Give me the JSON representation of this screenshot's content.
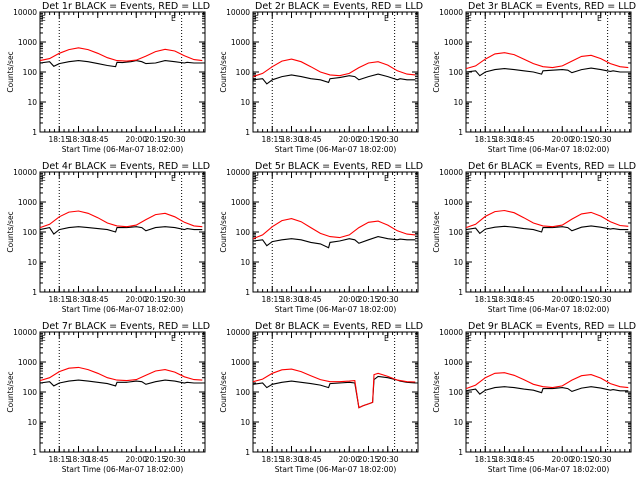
{
  "figure": {
    "y_axis_label": "Counts/sec",
    "x_axis_label": "Start Time (06-Mar-07 18:02:00)",
    "x_tick_labels": [
      "18:15",
      "18:30",
      "18:45",
      "20:00",
      "20:15",
      "20:30"
    ],
    "y_tick_labels": [
      "1",
      "10",
      "100",
      "1000",
      "10000"
    ],
    "corner_mark": "E",
    "colors": {
      "events": "#000000",
      "lld": "#ff0000",
      "axis": "#000000"
    }
  },
  "chart_data": [
    {
      "type": "line",
      "title": "Det 1r BLACK = Events, RED = LLD",
      "xlabel": "Start Time (06-Mar-07 18:02:00)",
      "ylabel": "Counts/sec",
      "yscale": "log",
      "ylim": [
        1,
        10000
      ],
      "x_ticks": [
        "18:15",
        "18:30",
        "18:45",
        "20:00",
        "20:15",
        "20:30"
      ],
      "vlines_minutes": [
        14,
        103
      ],
      "series": [
        {
          "name": "Events",
          "color": "black",
          "minutes": [
            0,
            7,
            10,
            14,
            21,
            28,
            35,
            42,
            49,
            55,
            56,
            60,
            66,
            70,
            74,
            77,
            84,
            91,
            98,
            105,
            107,
            112,
            118
          ],
          "values": [
            200,
            220,
            155,
            190,
            220,
            240,
            220,
            190,
            165,
            150,
            210,
            205,
            220,
            240,
            220,
            190,
            200,
            240,
            220,
            200,
            210,
            200,
            200
          ]
        },
        {
          "name": "LLD",
          "color": "red",
          "minutes": [
            0,
            7,
            14,
            21,
            28,
            35,
            42,
            49,
            56,
            63,
            70,
            77,
            84,
            91,
            98,
            105,
            112,
            118
          ],
          "values": [
            240,
            280,
            420,
            560,
            640,
            560,
            420,
            300,
            240,
            230,
            250,
            340,
            480,
            570,
            500,
            350,
            260,
            240
          ]
        }
      ]
    },
    {
      "type": "line",
      "title": "Det 2r BLACK = Events, RED = LLD",
      "xlabel": "Start Time (06-Mar-07 18:02:00)",
      "ylabel": "Counts/sec",
      "yscale": "log",
      "ylim": [
        1,
        10000
      ],
      "x_ticks": [
        "18:15",
        "18:30",
        "18:45",
        "20:00",
        "20:15",
        "20:30"
      ],
      "vlines_minutes": [
        14,
        103
      ],
      "series": [
        {
          "name": "Events",
          "color": "black",
          "minutes": [
            0,
            7,
            10,
            14,
            21,
            28,
            35,
            42,
            49,
            55,
            56,
            63,
            70,
            74,
            77,
            84,
            91,
            98,
            105,
            107,
            112,
            118
          ],
          "values": [
            55,
            60,
            40,
            55,
            70,
            80,
            70,
            60,
            55,
            45,
            60,
            65,
            75,
            70,
            55,
            70,
            85,
            70,
            55,
            60,
            55,
            55
          ]
        },
        {
          "name": "LLD",
          "color": "red",
          "minutes": [
            0,
            7,
            14,
            21,
            28,
            35,
            42,
            49,
            56,
            63,
            70,
            77,
            84,
            91,
            98,
            105,
            112,
            118
          ],
          "values": [
            70,
            90,
            150,
            230,
            270,
            220,
            150,
            100,
            80,
            75,
            90,
            140,
            200,
            220,
            170,
            110,
            85,
            80
          ]
        }
      ]
    },
    {
      "type": "line",
      "title": "Det 3r BLACK = Events, RED = LLD",
      "xlabel": "Start Time (06-Mar-07 18:02:00)",
      "ylabel": "Counts/sec",
      "yscale": "log",
      "ylim": [
        1,
        10000
      ],
      "x_ticks": [
        "18:15",
        "18:30",
        "18:45",
        "20:00",
        "20:15",
        "20:30"
      ],
      "vlines_minutes": [
        14,
        103
      ],
      "series": [
        {
          "name": "Events",
          "color": "black",
          "minutes": [
            0,
            7,
            10,
            14,
            21,
            28,
            35,
            42,
            49,
            55,
            56,
            63,
            70,
            74,
            77,
            84,
            91,
            98,
            105,
            107,
            112,
            118
          ],
          "values": [
            100,
            110,
            75,
            100,
            120,
            130,
            120,
            110,
            100,
            85,
            110,
            115,
            120,
            115,
            95,
            120,
            135,
            120,
            105,
            110,
            100,
            100
          ]
        },
        {
          "name": "LLD",
          "color": "red",
          "minutes": [
            0,
            7,
            14,
            21,
            28,
            35,
            42,
            49,
            56,
            63,
            70,
            77,
            84,
            91,
            98,
            105,
            112,
            118
          ],
          "values": [
            130,
            160,
            270,
            400,
            440,
            380,
            270,
            190,
            150,
            140,
            160,
            230,
            330,
            360,
            280,
            190,
            150,
            140
          ]
        }
      ]
    },
    {
      "type": "line",
      "title": "Det 4r BLACK = Events, RED = LLD",
      "xlabel": "Start Time (06-Mar-07 18:02:00)",
      "ylabel": "Counts/sec",
      "yscale": "log",
      "ylim": [
        1,
        10000
      ],
      "x_ticks": [
        "18:15",
        "18:30",
        "18:45",
        "20:00",
        "20:15",
        "20:30"
      ],
      "vlines_minutes": [
        14,
        103
      ],
      "series": [
        {
          "name": "Events",
          "color": "black",
          "minutes": [
            0,
            7,
            10,
            14,
            21,
            28,
            35,
            42,
            49,
            55,
            56,
            63,
            70,
            74,
            77,
            84,
            91,
            98,
            105,
            107,
            112,
            118
          ],
          "values": [
            120,
            140,
            85,
            120,
            140,
            150,
            140,
            130,
            120,
            100,
            140,
            140,
            150,
            140,
            110,
            140,
            150,
            140,
            120,
            130,
            120,
            120
          ]
        },
        {
          "name": "LLD",
          "color": "red",
          "minutes": [
            0,
            7,
            14,
            21,
            28,
            35,
            42,
            49,
            56,
            63,
            70,
            77,
            84,
            91,
            98,
            105,
            112,
            118
          ],
          "values": [
            140,
            180,
            320,
            460,
            500,
            420,
            300,
            200,
            160,
            150,
            170,
            260,
            380,
            420,
            320,
            210,
            160,
            150
          ]
        }
      ]
    },
    {
      "type": "line",
      "title": "Det 5r BLACK = Events, RED = LLD",
      "xlabel": "Start Time (06-Mar-07 18:02:00)",
      "ylabel": "Counts/sec",
      "yscale": "log",
      "ylim": [
        1,
        10000
      ],
      "x_ticks": [
        "18:15",
        "18:30",
        "18:45",
        "20:00",
        "20:15",
        "20:30"
      ],
      "vlines_minutes": [
        14,
        103
      ],
      "series": [
        {
          "name": "Events",
          "color": "black",
          "minutes": [
            0,
            7,
            10,
            14,
            21,
            28,
            35,
            42,
            49,
            55,
            56,
            63,
            70,
            74,
            77,
            84,
            91,
            98,
            105,
            107,
            112,
            118
          ],
          "values": [
            50,
            55,
            35,
            48,
            55,
            60,
            55,
            45,
            40,
            30,
            45,
            50,
            60,
            55,
            42,
            55,
            70,
            60,
            55,
            58,
            55,
            55
          ]
        },
        {
          "name": "LLD",
          "color": "red",
          "minutes": [
            0,
            7,
            14,
            21,
            28,
            35,
            42,
            49,
            56,
            63,
            70,
            77,
            84,
            91,
            98,
            105,
            112,
            118
          ],
          "values": [
            60,
            80,
            150,
            240,
            280,
            220,
            140,
            90,
            70,
            65,
            80,
            140,
            210,
            230,
            170,
            110,
            85,
            80
          ]
        }
      ]
    },
    {
      "type": "line",
      "title": "Det 6r BLACK = Events, RED = LLD",
      "xlabel": "Start Time (06-Mar-07 18:02:00)",
      "ylabel": "Counts/sec",
      "yscale": "log",
      "ylim": [
        1,
        10000
      ],
      "x_ticks": [
        "18:15",
        "18:30",
        "18:45",
        "20:00",
        "20:15",
        "20:30"
      ],
      "vlines_minutes": [
        14,
        103
      ],
      "series": [
        {
          "name": "Events",
          "color": "black",
          "minutes": [
            0,
            7,
            10,
            14,
            21,
            28,
            35,
            42,
            49,
            55,
            56,
            63,
            70,
            74,
            77,
            84,
            91,
            98,
            105,
            107,
            112,
            118
          ],
          "values": [
            120,
            135,
            90,
            125,
            145,
            155,
            145,
            130,
            120,
            100,
            140,
            140,
            150,
            140,
            110,
            145,
            160,
            145,
            125,
            130,
            120,
            120
          ]
        },
        {
          "name": "LLD",
          "color": "red",
          "minutes": [
            0,
            7,
            14,
            21,
            28,
            35,
            42,
            49,
            56,
            63,
            70,
            77,
            84,
            91,
            98,
            105,
            112,
            118
          ],
          "values": [
            140,
            180,
            330,
            480,
            520,
            440,
            300,
            200,
            160,
            150,
            170,
            270,
            400,
            450,
            340,
            220,
            165,
            155
          ]
        }
      ]
    },
    {
      "type": "line",
      "title": "Det 7r BLACK = Events, RED = LLD",
      "xlabel": "Start Time (06-Mar-07 18:02:00)",
      "ylabel": "Counts/sec",
      "yscale": "log",
      "ylim": [
        1,
        10000
      ],
      "x_ticks": [
        "18:15",
        "18:30",
        "18:45",
        "20:00",
        "20:15",
        "20:30"
      ],
      "vlines_minutes": [
        14,
        103
      ],
      "series": [
        {
          "name": "Events",
          "color": "black",
          "minutes": [
            0,
            7,
            10,
            14,
            21,
            28,
            35,
            42,
            49,
            55,
            56,
            63,
            70,
            74,
            77,
            84,
            91,
            98,
            105,
            107,
            112,
            118
          ],
          "values": [
            200,
            220,
            160,
            200,
            230,
            250,
            230,
            210,
            190,
            160,
            210,
            210,
            230,
            220,
            180,
            220,
            250,
            230,
            200,
            210,
            200,
            200
          ]
        },
        {
          "name": "LLD",
          "color": "red",
          "minutes": [
            0,
            7,
            14,
            21,
            28,
            35,
            42,
            49,
            56,
            63,
            70,
            77,
            84,
            91,
            98,
            105,
            112,
            118
          ],
          "values": [
            240,
            300,
            480,
            620,
            660,
            560,
            420,
            300,
            250,
            240,
            260,
            360,
            500,
            560,
            460,
            320,
            260,
            250
          ]
        }
      ]
    },
    {
      "type": "line",
      "title": "Det 8r BLACK = Events, RED = LLD",
      "xlabel": "Start Time (06-Mar-07 18:02:00)",
      "ylabel": "Counts/sec",
      "yscale": "log",
      "ylim": [
        1,
        10000
      ],
      "x_ticks": [
        "18:15",
        "18:30",
        "18:45",
        "20:00",
        "20:15",
        "20:30"
      ],
      "vlines_minutes": [
        14,
        103
      ],
      "series": [
        {
          "name": "Events",
          "color": "black",
          "minutes": [
            0,
            7,
            10,
            14,
            21,
            28,
            35,
            42,
            49,
            55,
            56,
            63,
            70,
            74,
            77,
            80,
            84,
            87,
            88,
            91,
            98,
            105,
            107,
            112,
            118
          ],
          "values": [
            180,
            200,
            140,
            180,
            210,
            230,
            210,
            190,
            170,
            140,
            190,
            200,
            210,
            200,
            30,
            35,
            40,
            45,
            260,
            330,
            300,
            250,
            230,
            210,
            200
          ]
        },
        {
          "name": "LLD",
          "color": "red",
          "minutes": [
            0,
            7,
            14,
            21,
            28,
            35,
            42,
            49,
            56,
            63,
            70,
            74,
            77,
            80,
            84,
            87,
            88,
            91,
            98,
            105,
            112,
            118
          ],
          "values": [
            220,
            270,
            420,
            550,
            580,
            480,
            350,
            260,
            220,
            220,
            230,
            240,
            30,
            35,
            40,
            45,
            380,
            420,
            330,
            250,
            220,
            215
          ]
        }
      ]
    },
    {
      "type": "line",
      "title": "Det 9r BLACK = Events, RED = LLD",
      "xlabel": "Start Time (06-Mar-07 18:02:00)",
      "ylabel": "Counts/sec",
      "yscale": "log",
      "ylim": [
        1,
        10000
      ],
      "x_ticks": [
        "18:15",
        "18:30",
        "18:45",
        "20:00",
        "20:15",
        "20:30"
      ],
      "vlines_minutes": [
        14,
        103
      ],
      "series": [
        {
          "name": "Events",
          "color": "black",
          "minutes": [
            0,
            7,
            10,
            14,
            21,
            28,
            35,
            42,
            49,
            55,
            56,
            63,
            70,
            74,
            77,
            84,
            91,
            98,
            105,
            107,
            112,
            118
          ],
          "values": [
            110,
            125,
            85,
            115,
            140,
            150,
            140,
            125,
            115,
            95,
            130,
            130,
            140,
            130,
            105,
            135,
            150,
            135,
            115,
            120,
            110,
            110
          ]
        },
        {
          "name": "LLD",
          "color": "red",
          "minutes": [
            0,
            7,
            14,
            21,
            28,
            35,
            42,
            49,
            56,
            63,
            70,
            77,
            84,
            91,
            98,
            105,
            112,
            118
          ],
          "values": [
            130,
            170,
            300,
            420,
            440,
            360,
            260,
            180,
            150,
            140,
            160,
            250,
            350,
            380,
            290,
            190,
            150,
            140
          ]
        }
      ]
    }
  ]
}
